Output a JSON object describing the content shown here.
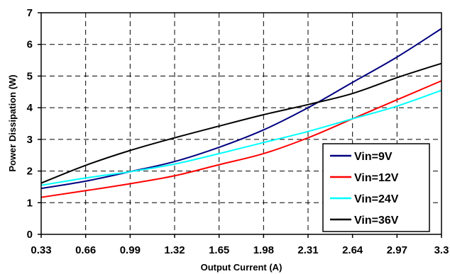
{
  "chart_data": {
    "type": "line",
    "title": "",
    "xlabel": "Output Current (A)",
    "ylabel": "Power Dissipation (W)",
    "xlim": [
      0.33,
      3.3
    ],
    "ylim": [
      0,
      7
    ],
    "x_ticks": [
      "0.33",
      "0.66",
      "0.99",
      "1.32",
      "1.65",
      "1.98",
      "2.31",
      "2.64",
      "2.97",
      "3.3"
    ],
    "y_ticks": [
      "0",
      "1",
      "2",
      "3",
      "4",
      "5",
      "6",
      "7"
    ],
    "grid": true,
    "legend_position": "bottom-right",
    "series": [
      {
        "name": "Vin=9V",
        "color": "#000080",
        "x": [
          0.33,
          0.66,
          0.99,
          1.32,
          1.65,
          1.98,
          2.31,
          2.64,
          2.97,
          3.3
        ],
        "y": [
          1.45,
          1.68,
          1.98,
          2.3,
          2.75,
          3.3,
          4.0,
          4.8,
          5.6,
          6.5
        ]
      },
      {
        "name": "Vin=12V",
        "color": "#ff0000",
        "x": [
          0.33,
          0.66,
          0.99,
          1.32,
          1.65,
          1.98,
          2.31,
          2.64,
          2.97,
          3.3
        ],
        "y": [
          1.17,
          1.38,
          1.6,
          1.85,
          2.2,
          2.55,
          3.05,
          3.65,
          4.25,
          4.85
        ]
      },
      {
        "name": "Vin=24V",
        "color": "#00ffff",
        "x": [
          0.33,
          0.66,
          0.99,
          1.32,
          1.65,
          1.98,
          2.31,
          2.64,
          2.97,
          3.3
        ],
        "y": [
          1.55,
          1.78,
          1.98,
          2.22,
          2.55,
          2.9,
          3.25,
          3.65,
          4.05,
          4.55
        ]
      },
      {
        "name": "Vin=36V",
        "color": "#000000",
        "x": [
          0.33,
          0.66,
          0.99,
          1.32,
          1.65,
          1.98,
          2.31,
          2.64,
          2.97,
          3.3
        ],
        "y": [
          1.62,
          2.18,
          2.65,
          3.05,
          3.42,
          3.78,
          4.1,
          4.45,
          4.95,
          5.4
        ]
      }
    ]
  }
}
